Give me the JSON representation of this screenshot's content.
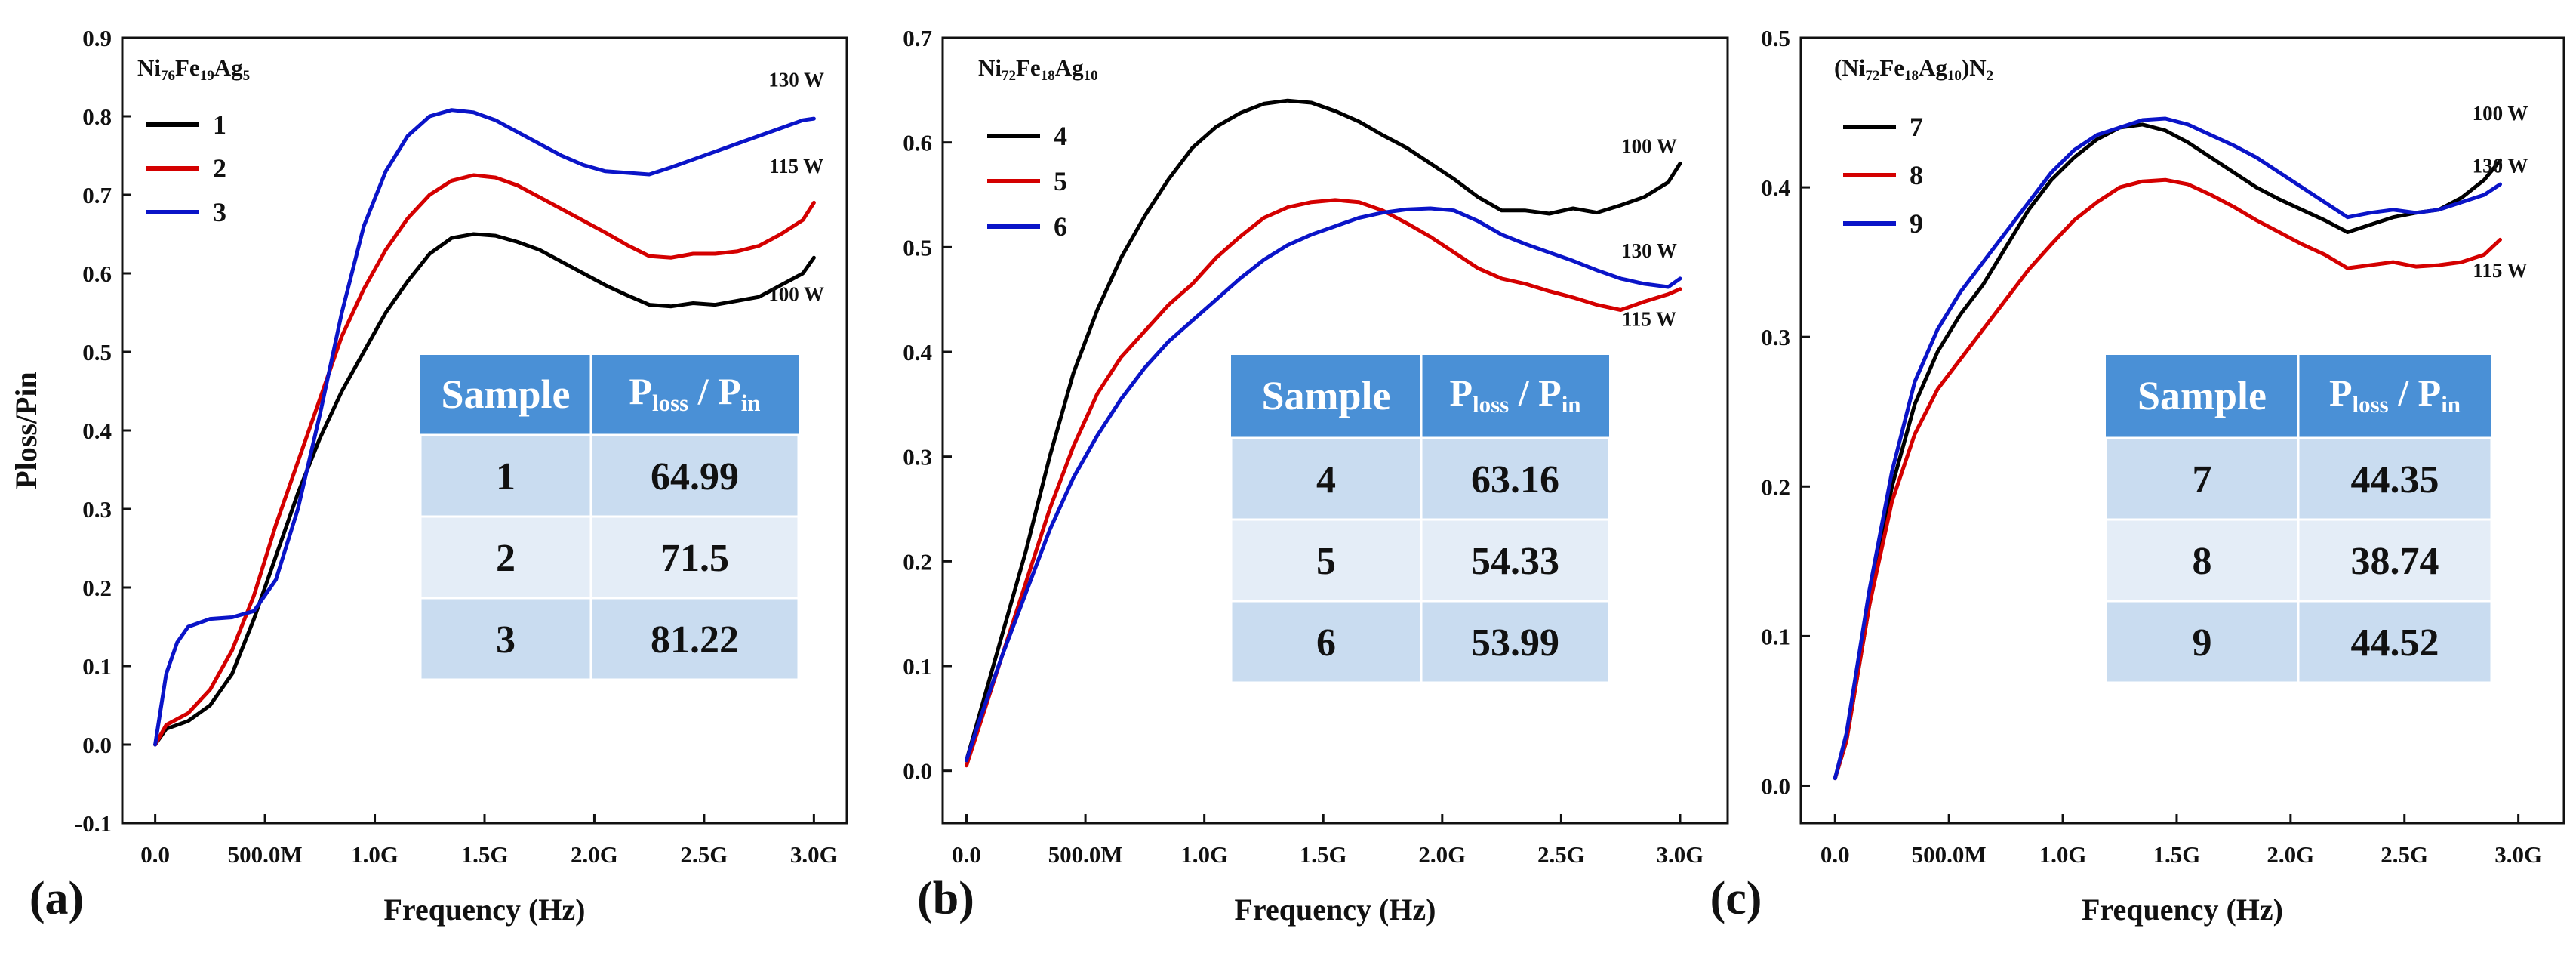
{
  "figure": {
    "colors": {
      "black": "#000000",
      "red": "#d40000",
      "blue": "#0a14c8",
      "table_header": "#4a90d6",
      "table_row_dark": "#c9dcf0",
      "table_row_light": "#e4edf7"
    }
  },
  "chart_data": [
    {
      "type": "line",
      "panel_label": "(a)",
      "legend_title_parts": [
        [
          "Ni",
          false
        ],
        [
          "76",
          true
        ],
        [
          "Fe",
          false
        ],
        [
          "19",
          true
        ],
        [
          "Ag",
          false
        ],
        [
          "5",
          true
        ]
      ],
      "xlabel": "Frequency (Hz)",
      "ylabel": "Ploss/Pin",
      "xlim": [
        -0.15,
        3.15
      ],
      "ylim": [
        -0.1,
        0.9
      ],
      "yticks": [
        -0.1,
        0.0,
        0.1,
        0.2,
        0.3,
        0.4,
        0.5,
        0.6,
        0.7,
        0.8,
        0.9
      ],
      "xtick_values": [
        0,
        0.5,
        1.0,
        1.5,
        2.0,
        2.5,
        3.0
      ],
      "xtick_labels": [
        "0.0",
        "500.0M",
        "1.0G",
        "1.5G",
        "2.0G",
        "2.5G",
        "3.0G"
      ],
      "series": [
        {
          "name": "1",
          "color": "black",
          "power_label": "100 W",
          "label_pos": [
            2.92,
            0.565
          ],
          "x": [
            0,
            0.05,
            0.15,
            0.25,
            0.35,
            0.45,
            0.55,
            0.65,
            0.75,
            0.85,
            0.95,
            1.05,
            1.15,
            1.25,
            1.35,
            1.45,
            1.55,
            1.65,
            1.75,
            1.85,
            1.95,
            2.05,
            2.15,
            2.25,
            2.35,
            2.45,
            2.55,
            2.65,
            2.75,
            2.85,
            2.95,
            3.0
          ],
          "y": [
            0,
            0.02,
            0.03,
            0.05,
            0.09,
            0.16,
            0.24,
            0.32,
            0.39,
            0.45,
            0.5,
            0.55,
            0.59,
            0.625,
            0.645,
            0.65,
            0.648,
            0.64,
            0.63,
            0.615,
            0.6,
            0.585,
            0.572,
            0.56,
            0.558,
            0.562,
            0.56,
            0.565,
            0.57,
            0.585,
            0.6,
            0.62
          ]
        },
        {
          "name": "2",
          "color": "red",
          "power_label": "115 W",
          "label_pos": [
            2.92,
            0.728
          ],
          "x": [
            0,
            0.05,
            0.15,
            0.25,
            0.35,
            0.45,
            0.55,
            0.65,
            0.75,
            0.85,
            0.95,
            1.05,
            1.15,
            1.25,
            1.35,
            1.45,
            1.55,
            1.65,
            1.75,
            1.85,
            1.95,
            2.05,
            2.15,
            2.25,
            2.35,
            2.45,
            2.55,
            2.65,
            2.75,
            2.85,
            2.95,
            3.0
          ],
          "y": [
            0,
            0.025,
            0.04,
            0.07,
            0.12,
            0.19,
            0.28,
            0.36,
            0.44,
            0.52,
            0.58,
            0.63,
            0.67,
            0.7,
            0.718,
            0.725,
            0.722,
            0.712,
            0.697,
            0.682,
            0.667,
            0.652,
            0.636,
            0.622,
            0.62,
            0.625,
            0.625,
            0.628,
            0.635,
            0.65,
            0.668,
            0.69
          ]
        },
        {
          "name": "3",
          "color": "blue",
          "power_label": "130 W",
          "label_pos": [
            2.92,
            0.838
          ],
          "x": [
            0,
            0.05,
            0.1,
            0.15,
            0.25,
            0.35,
            0.45,
            0.55,
            0.65,
            0.75,
            0.85,
            0.95,
            1.05,
            1.15,
            1.25,
            1.35,
            1.45,
            1.55,
            1.65,
            1.75,
            1.85,
            1.95,
            2.05,
            2.15,
            2.25,
            2.35,
            2.45,
            2.55,
            2.65,
            2.75,
            2.85,
            2.95,
            3.0
          ],
          "y": [
            0,
            0.09,
            0.13,
            0.15,
            0.16,
            0.162,
            0.17,
            0.21,
            0.3,
            0.42,
            0.55,
            0.66,
            0.73,
            0.775,
            0.8,
            0.808,
            0.805,
            0.795,
            0.78,
            0.765,
            0.75,
            0.738,
            0.73,
            0.728,
            0.726,
            0.735,
            0.745,
            0.755,
            0.765,
            0.775,
            0.785,
            0.795,
            0.797
          ]
        }
      ],
      "table": {
        "header_sample": "Sample",
        "header_ratio_parts": [
          [
            "P",
            false
          ],
          [
            "loss",
            true
          ],
          [
            " / P",
            false
          ],
          [
            "in",
            true
          ]
        ],
        "rows": [
          [
            "1",
            "64.99"
          ],
          [
            "2",
            "71.5"
          ],
          [
            "3",
            "81.22"
          ]
        ]
      }
    },
    {
      "type": "line",
      "panel_label": "(b)",
      "legend_title_parts": [
        [
          "Ni",
          false
        ],
        [
          "72",
          true
        ],
        [
          "Fe",
          false
        ],
        [
          "18",
          true
        ],
        [
          "Ag",
          false
        ],
        [
          "10",
          true
        ]
      ],
      "xlabel": "Frequency (Hz)",
      "ylabel": "",
      "xlim": [
        -0.1,
        3.2
      ],
      "ylim": [
        -0.05,
        0.7
      ],
      "yticks": [
        0.0,
        0.1,
        0.2,
        0.3,
        0.4,
        0.5,
        0.6,
        0.7
      ],
      "xtick_values": [
        0,
        0.5,
        1.0,
        1.5,
        2.0,
        2.5,
        3.0
      ],
      "xtick_labels": [
        "0.0",
        "500.0M",
        "1.0G",
        "1.5G",
        "2.0G",
        "2.5G",
        "3.0G"
      ],
      "series": [
        {
          "name": "4",
          "color": "black",
          "power_label": "100 W",
          "label_pos": [
            2.87,
            0.59
          ],
          "x": [
            0,
            0.05,
            0.15,
            0.25,
            0.35,
            0.45,
            0.55,
            0.65,
            0.75,
            0.85,
            0.95,
            1.05,
            1.15,
            1.25,
            1.35,
            1.45,
            1.55,
            1.65,
            1.75,
            1.85,
            1.95,
            2.05,
            2.15,
            2.25,
            2.35,
            2.45,
            2.55,
            2.65,
            2.75,
            2.85,
            2.95,
            3.0
          ],
          "y": [
            0.01,
            0.05,
            0.13,
            0.21,
            0.3,
            0.38,
            0.44,
            0.49,
            0.53,
            0.565,
            0.595,
            0.615,
            0.628,
            0.637,
            0.64,
            0.638,
            0.63,
            0.62,
            0.607,
            0.595,
            0.58,
            0.565,
            0.548,
            0.535,
            0.535,
            0.532,
            0.537,
            0.533,
            0.54,
            0.548,
            0.562,
            0.58
          ]
        },
        {
          "name": "5",
          "color": "red",
          "power_label": "115 W",
          "label_pos": [
            2.87,
            0.425
          ],
          "x": [
            0,
            0.05,
            0.15,
            0.25,
            0.35,
            0.45,
            0.55,
            0.65,
            0.75,
            0.85,
            0.95,
            1.05,
            1.15,
            1.25,
            1.35,
            1.45,
            1.55,
            1.65,
            1.75,
            1.85,
            1.95,
            2.05,
            2.15,
            2.25,
            2.35,
            2.45,
            2.55,
            2.65,
            2.75,
            2.85,
            2.95,
            3.0
          ],
          "y": [
            0.005,
            0.04,
            0.11,
            0.18,
            0.25,
            0.31,
            0.36,
            0.395,
            0.42,
            0.445,
            0.465,
            0.49,
            0.51,
            0.528,
            0.538,
            0.543,
            0.545,
            0.543,
            0.535,
            0.523,
            0.51,
            0.495,
            0.48,
            0.47,
            0.465,
            0.458,
            0.452,
            0.445,
            0.44,
            0.448,
            0.455,
            0.46
          ]
        },
        {
          "name": "6",
          "color": "blue",
          "power_label": "130 W",
          "label_pos": [
            2.87,
            0.49
          ],
          "x": [
            0,
            0.05,
            0.15,
            0.25,
            0.35,
            0.45,
            0.55,
            0.65,
            0.75,
            0.85,
            0.95,
            1.05,
            1.15,
            1.25,
            1.35,
            1.45,
            1.55,
            1.65,
            1.75,
            1.85,
            1.95,
            2.05,
            2.15,
            2.25,
            2.35,
            2.45,
            2.55,
            2.65,
            2.75,
            2.85,
            2.95,
            3.0
          ],
          "y": [
            0.01,
            0.045,
            0.11,
            0.17,
            0.23,
            0.28,
            0.32,
            0.355,
            0.385,
            0.41,
            0.43,
            0.45,
            0.47,
            0.488,
            0.502,
            0.512,
            0.52,
            0.528,
            0.533,
            0.536,
            0.537,
            0.535,
            0.525,
            0.512,
            0.503,
            0.495,
            0.487,
            0.478,
            0.47,
            0.465,
            0.462,
            0.47
          ]
        }
      ],
      "table": {
        "header_sample": "Sample",
        "header_ratio_parts": [
          [
            "P",
            false
          ],
          [
            "loss",
            true
          ],
          [
            " / P",
            false
          ],
          [
            "in",
            true
          ]
        ],
        "rows": [
          [
            "4",
            "63.16"
          ],
          [
            "5",
            "54.33"
          ],
          [
            "6",
            "53.99"
          ]
        ]
      }
    },
    {
      "type": "line",
      "panel_label": "(c)",
      "legend_title_parts": [
        [
          "(Ni",
          false
        ],
        [
          "72",
          true
        ],
        [
          "Fe",
          false
        ],
        [
          "18",
          true
        ],
        [
          "Ag",
          false
        ],
        [
          "10",
          true
        ],
        [
          ")N",
          false
        ],
        [
          "2",
          true
        ]
      ],
      "xlabel": "Frequency (Hz)",
      "ylabel": "",
      "xlim": [
        -0.15,
        3.2
      ],
      "ylim": [
        -0.025,
        0.5
      ],
      "yticks": [
        0.0,
        0.1,
        0.2,
        0.3,
        0.4,
        0.5
      ],
      "xtick_values": [
        0,
        0.5,
        1.0,
        1.5,
        2.0,
        2.5,
        3.0
      ],
      "xtick_labels": [
        "0.0",
        "500.0M",
        "1.0G",
        "1.5G",
        "2.0G",
        "2.5G",
        "3.0G"
      ],
      "series": [
        {
          "name": "7",
          "color": "black",
          "power_label": "100 W",
          "label_pos": [
            2.92,
            0.445
          ],
          "x": [
            0,
            0.05,
            0.15,
            0.25,
            0.35,
            0.45,
            0.55,
            0.65,
            0.75,
            0.85,
            0.95,
            1.05,
            1.15,
            1.25,
            1.35,
            1.45,
            1.55,
            1.65,
            1.75,
            1.85,
            1.95,
            2.05,
            2.15,
            2.25,
            2.35,
            2.45,
            2.55,
            2.65,
            2.75,
            2.85,
            2.92
          ],
          "y": [
            0.005,
            0.03,
            0.12,
            0.2,
            0.255,
            0.29,
            0.315,
            0.335,
            0.36,
            0.385,
            0.405,
            0.42,
            0.432,
            0.44,
            0.442,
            0.438,
            0.43,
            0.42,
            0.41,
            0.4,
            0.392,
            0.385,
            0.378,
            0.37,
            0.375,
            0.38,
            0.383,
            0.385,
            0.393,
            0.405,
            0.418
          ]
        },
        {
          "name": "8",
          "color": "red",
          "power_label": "115 W",
          "label_pos": [
            2.92,
            0.34
          ],
          "x": [
            0,
            0.05,
            0.15,
            0.25,
            0.35,
            0.45,
            0.55,
            0.65,
            0.75,
            0.85,
            0.95,
            1.05,
            1.15,
            1.25,
            1.35,
            1.45,
            1.55,
            1.65,
            1.75,
            1.85,
            1.95,
            2.05,
            2.15,
            2.25,
            2.35,
            2.45,
            2.55,
            2.65,
            2.75,
            2.85,
            2.92
          ],
          "y": [
            0.005,
            0.03,
            0.12,
            0.19,
            0.235,
            0.265,
            0.285,
            0.305,
            0.325,
            0.345,
            0.362,
            0.378,
            0.39,
            0.4,
            0.404,
            0.405,
            0.402,
            0.395,
            0.387,
            0.378,
            0.37,
            0.362,
            0.355,
            0.346,
            0.348,
            0.35,
            0.347,
            0.348,
            0.35,
            0.355,
            0.365
          ]
        },
        {
          "name": "9",
          "color": "blue",
          "power_label": "130 W",
          "label_pos": [
            2.92,
            0.41
          ],
          "x": [
            0,
            0.05,
            0.15,
            0.25,
            0.35,
            0.45,
            0.55,
            0.65,
            0.75,
            0.85,
            0.95,
            1.05,
            1.15,
            1.25,
            1.35,
            1.45,
            1.55,
            1.65,
            1.75,
            1.85,
            1.95,
            2.05,
            2.15,
            2.25,
            2.35,
            2.45,
            2.55,
            2.65,
            2.75,
            2.85,
            2.92
          ],
          "y": [
            0.005,
            0.035,
            0.13,
            0.21,
            0.27,
            0.305,
            0.33,
            0.35,
            0.37,
            0.39,
            0.41,
            0.425,
            0.435,
            0.44,
            0.445,
            0.446,
            0.442,
            0.435,
            0.428,
            0.42,
            0.41,
            0.4,
            0.39,
            0.38,
            0.383,
            0.385,
            0.383,
            0.385,
            0.39,
            0.395,
            0.402
          ]
        }
      ],
      "table": {
        "header_sample": "Sample",
        "header_ratio_parts": [
          [
            "P",
            false
          ],
          [
            "loss",
            true
          ],
          [
            " / P",
            false
          ],
          [
            "in",
            true
          ]
        ],
        "rows": [
          [
            "7",
            "44.35"
          ],
          [
            "8",
            "38.74"
          ],
          [
            "9",
            "44.52"
          ]
        ]
      }
    }
  ]
}
